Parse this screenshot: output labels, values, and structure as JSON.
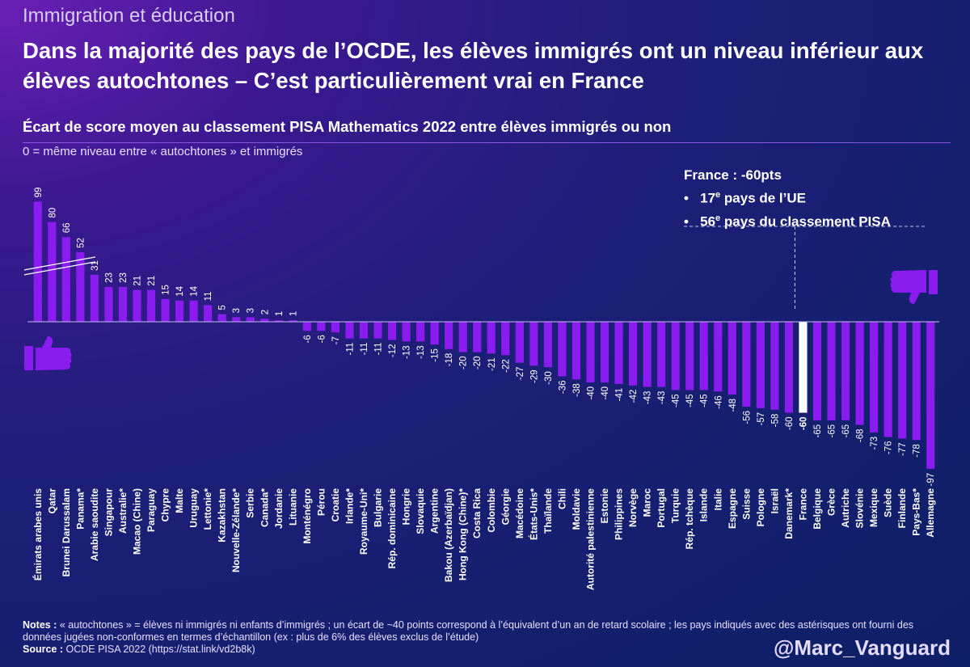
{
  "header": {
    "kicker": "Immigration et éducation",
    "title": "Dans la majorité des pays de l’OCDE, les élèves immigrés ont un niveau inférieur aux élèves autochtones – C’est particulièrement vrai en France",
    "subtitle": "Écart de score moyen au classement PISA Mathematics 2022 entre élèves immigrés ou non",
    "zero_note": "0 = même niveau entre « autochtones » et immigrés"
  },
  "callout": {
    "heading": "France : -60pts",
    "bullet": "•",
    "line1_num": "17",
    "line1_sup": "e",
    "line1_rest": " pays de l’UE",
    "line2_num": "56",
    "line2_sup": "e",
    "line2_rest": " pays du classement PISA"
  },
  "footer": {
    "notes_label": "Notes :",
    "notes_text": "« autochtones » = élèves ni immigrés ni enfants d’immigrés ; un écart de ~40 points correspond à l’équivalent d’un an de retard scolaire ; les pays indiqués avec des astérisques ont fourni des données jugées non-conformes en termes d’échantillon (ex : plus de 6% des élèves exclus de l’étude)",
    "source_label": "Source :",
    "source_text": "OCDE PISA 2022 (https://stat.link/vd2b8k)",
    "handle": "@Marc_Vanguard"
  },
  "colors": {
    "bar": "#8a1cf0",
    "highlight": "#ffffff",
    "title": "#ffffff"
  },
  "icons": [
    "thumbs-up-icon",
    "thumbs-down-icon"
  ],
  "chart_data": {
    "type": "bar",
    "title": "Écart de score moyen au classement PISA Mathematics 2022 entre élèves immigrés ou non",
    "ylabel": "",
    "xlabel": "",
    "highlight": "France",
    "broken_axis_note": "Bars above 30 are drawn with a compressed (broken) axis",
    "categories": [
      "Émirats arabes unis",
      "Qatar",
      "Brunei Darussalam",
      "Panama*",
      "Arabie saoudite",
      "Singapour",
      "Australie*",
      "Macao (Chine)",
      "Paraguay",
      "Chypre",
      "Malte",
      "Uruguay",
      "Lettonie*",
      "Kazakhstan",
      "Nouvelle-Zélande*",
      "Serbie",
      "Canada*",
      "Jordanie",
      "Lituanie",
      "Monténégro",
      "Pérou",
      "Croatie",
      "Irlande*",
      "Royaume-Uni*",
      "Bulgarie",
      "Rép. dominicaine",
      "Hongrie",
      "Slovaquie",
      "Argentine",
      "Bakou (Azerbaïdjan)",
      "Hong Kong (Chine)*",
      "Costa Rica",
      "Colombie",
      "Géorgie",
      "Macédoine",
      "États-Unis*",
      "Thaïlande",
      "Chili",
      "Moldavie",
      "Autorité palestinienne",
      "Estonie",
      "Philippines",
      "Norvège",
      "Maroc",
      "Portugal",
      "Turquie",
      "Rép. tchèque",
      "Islande",
      "Italie",
      "Espagne",
      "Suisse",
      "Pologne",
      "Israël",
      "Danemark*",
      "France",
      "Belgique",
      "Grèce",
      "Autriche",
      "Slovénie",
      "Mexique",
      "Suède",
      "Finlande",
      "Pays-Bas*",
      "Allemagne"
    ],
    "values": [
      99,
      80,
      66,
      52,
      31,
      23,
      23,
      21,
      21,
      15,
      14,
      14,
      11,
      5,
      3,
      3,
      2,
      1,
      1,
      -6,
      -6,
      -7,
      -11,
      -11,
      -11,
      -12,
      -13,
      -13,
      -15,
      -18,
      -20,
      -20,
      -21,
      -22,
      -27,
      -29,
      -30,
      -36,
      -38,
      -40,
      -40,
      -41,
      -42,
      -43,
      -43,
      -45,
      -45,
      -45,
      -46,
      -48,
      -56,
      -57,
      -58,
      -60,
      -60,
      -65,
      -65,
      -65,
      -68,
      -73,
      -76,
      -77,
      -78,
      -97
    ],
    "value_labels": [
      "99",
      "80",
      "66",
      "52",
      "31",
      "23",
      "23",
      "21",
      "21",
      "15",
      "14",
      "14",
      "11",
      "5",
      "3",
      "3",
      "2",
      "1",
      "1",
      "-6",
      "-6",
      "-7",
      "-11",
      "-11",
      "-11",
      "-12",
      "-13",
      "-13",
      "-15",
      "-18",
      "-20",
      "-20",
      "-21",
      "-22",
      "-27",
      "-29",
      "-30",
      "-36",
      "-38",
      "-40",
      "-40",
      "-41",
      "-42",
      "-43",
      "-43",
      "-45",
      "-45",
      "-45",
      "-46",
      "-48",
      "-56",
      "-57",
      "-58",
      "-60",
      "-60",
      "-65",
      "-65",
      "-65",
      "-68",
      "-73",
      "-76",
      "-77",
      "-78",
      "-97"
    ]
  }
}
